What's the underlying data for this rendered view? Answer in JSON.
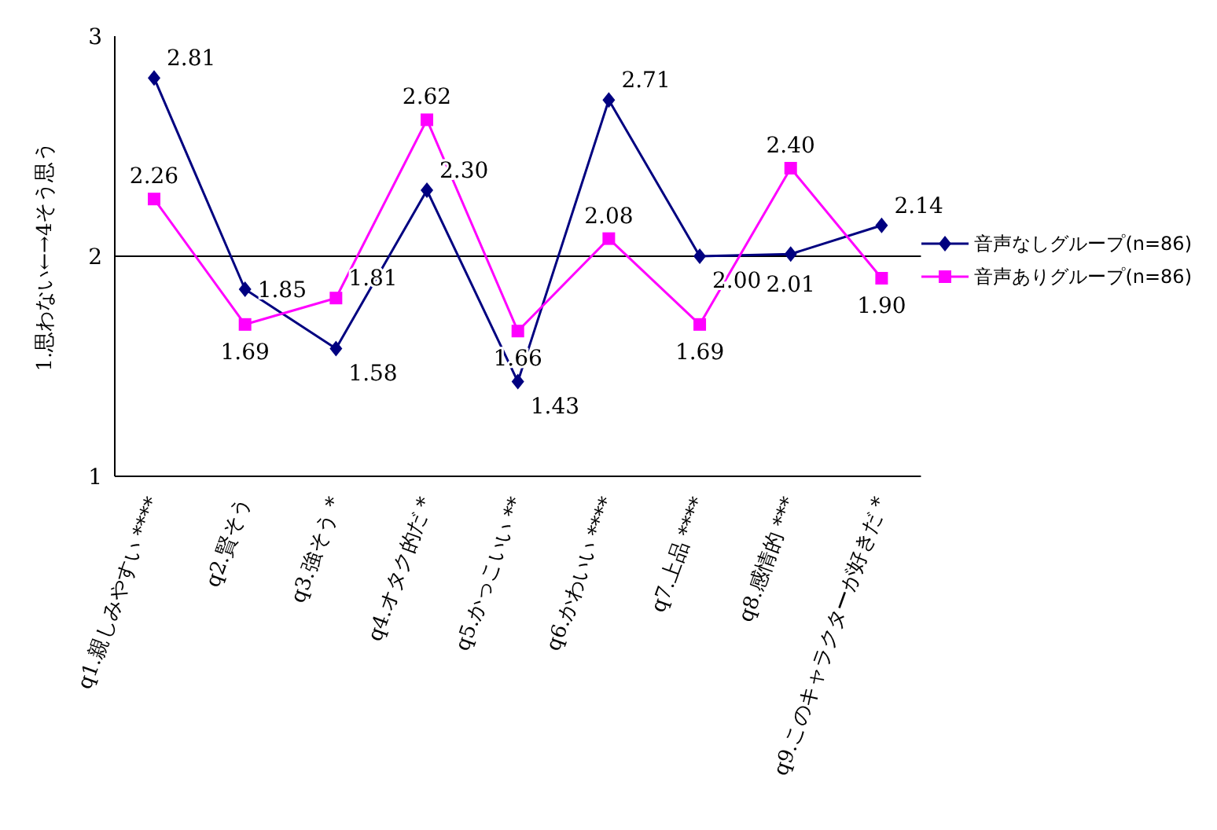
{
  "chart_data": {
    "type": "line",
    "ylabel": "1.思わない←→4そう思う",
    "categories": [
      "q1.親しみやすい ****",
      "q2.賢そう",
      "q3.強そう *",
      "q4.オタク的だ *",
      "q5.かっこいい **",
      "q6.かわいい ****",
      "q7.上品 ****",
      "q8.感情的 ***",
      "q9.このキャラクターが好きだ *"
    ],
    "series": [
      {
        "name": "音声なしグループ(n=86)",
        "color": "#000080",
        "marker": "diamond",
        "values": [
          2.81,
          1.85,
          1.58,
          2.3,
          1.43,
          2.71,
          2.0,
          2.01,
          2.14
        ],
        "value_labels": [
          "2.81",
          "1.85",
          "1.58",
          "2.30",
          "1.43",
          "2.71",
          "2.00",
          "2.01",
          "2.14"
        ]
      },
      {
        "name": "音声ありグループ(n=86)",
        "color": "#ff00ff",
        "marker": "square",
        "values": [
          2.26,
          1.69,
          1.81,
          2.62,
          1.66,
          2.08,
          1.69,
          2.4,
          1.9
        ],
        "value_labels": [
          "2.26",
          "1.69",
          "1.81",
          "2.62",
          "1.66",
          "2.08",
          "1.69",
          "2.40",
          "1.90"
        ]
      }
    ],
    "ylim": [
      1,
      3
    ],
    "yticks": [
      1,
      2,
      3
    ],
    "ref_lines": [
      {
        "axis": "y",
        "value": 2,
        "color": "#000000"
      }
    ],
    "legend": "right"
  }
}
